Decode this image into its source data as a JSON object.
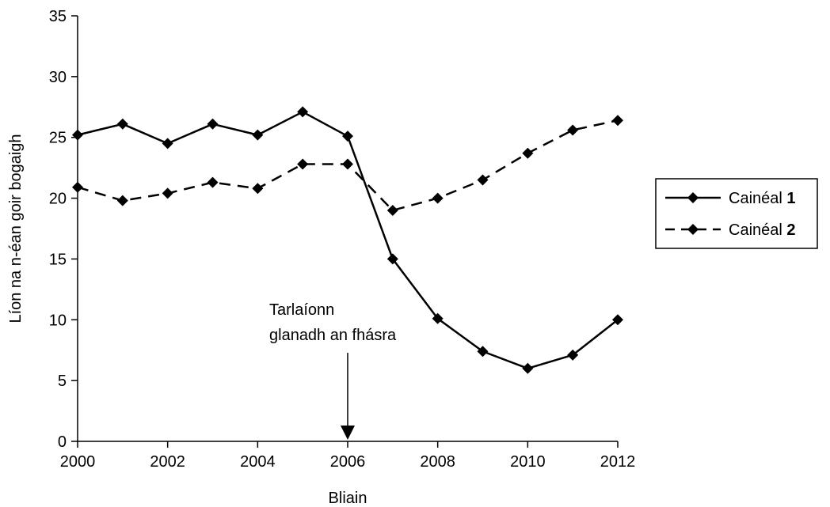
{
  "chart_data": {
    "type": "line",
    "title": "",
    "xlabel": "Bliain",
    "ylabel": "Líon na n-éan goir bogaigh",
    "x": [
      2000,
      2001,
      2002,
      2003,
      2004,
      2005,
      2006,
      2007,
      2008,
      2009,
      2010,
      2011,
      2012
    ],
    "xlim": [
      2000,
      2012
    ],
    "ylim": [
      0,
      35
    ],
    "x_ticks": [
      "2000",
      "2002",
      "2004",
      "2006",
      "2008",
      "2010",
      "2012"
    ],
    "y_ticks": [
      "0",
      "5",
      "10",
      "15",
      "20",
      "25",
      "30",
      "35"
    ],
    "grid": false,
    "legend_position": "right",
    "series": [
      {
        "name": "Cainéal 1",
        "name_prefix": "Cainéal ",
        "name_number": "1",
        "line_style": "solid",
        "marker": "diamond",
        "color": "#000000",
        "values": [
          25.2,
          26.1,
          24.5,
          26.1,
          25.2,
          27.1,
          25.1,
          15.0,
          10.1,
          7.4,
          6.0,
          7.1,
          10.0
        ]
      },
      {
        "name": "Cainéal 2",
        "name_prefix": "Cainéal ",
        "name_number": "2",
        "line_style": "dashed",
        "marker": "diamond",
        "color": "#000000",
        "values": [
          20.9,
          19.8,
          20.4,
          21.3,
          20.8,
          22.8,
          22.8,
          19.0,
          20.0,
          21.5,
          23.7,
          25.6,
          26.4
        ]
      }
    ],
    "annotation": {
      "line1": "Tarlaíonn",
      "line2": "glanadh an fhásra",
      "x": 2006,
      "arrow": "down"
    }
  }
}
